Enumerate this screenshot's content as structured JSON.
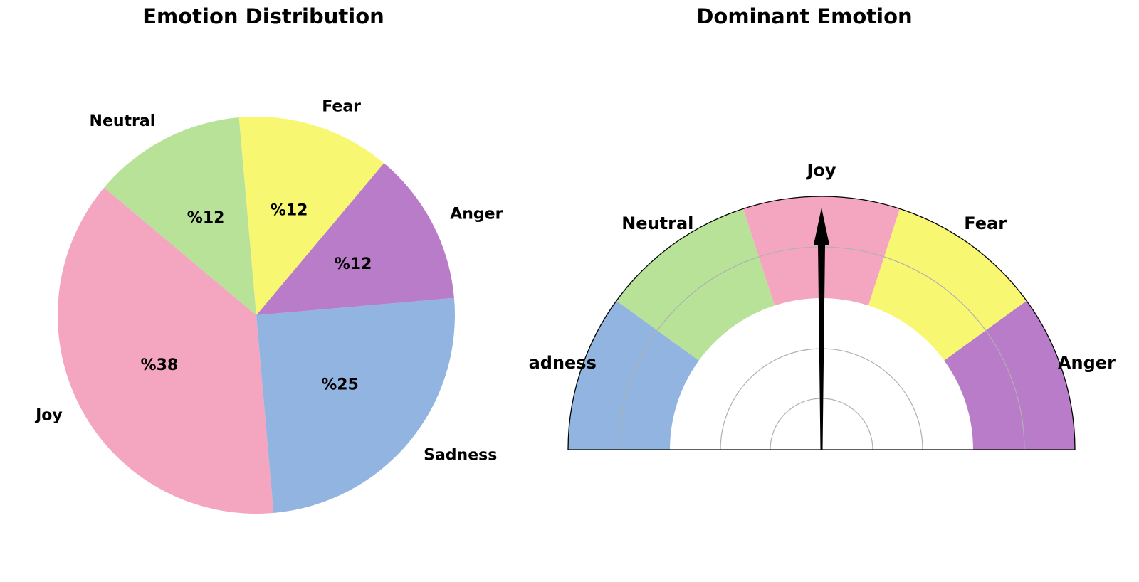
{
  "chart_data": [
    {
      "type": "pie",
      "title": "Emotion Distribution",
      "categories": [
        "Joy",
        "Sadness",
        "Anger",
        "Fear",
        "Neutral"
      ],
      "values": [
        37.5,
        25,
        12.5,
        12.5,
        12.5
      ],
      "value_labels": [
        "%38",
        "%25",
        "%12",
        "%12",
        "%12"
      ],
      "colors": [
        "#f4a6c0",
        "#92b4e0",
        "#b87cc8",
        "#f7f772",
        "#b7e298"
      ],
      "legend": "none"
    },
    {
      "type": "gauge",
      "title": "Dominant Emotion",
      "categories": [
        "Sadness",
        "Neutral",
        "Joy",
        "Fear",
        "Anger"
      ],
      "colors": [
        "#92b4e0",
        "#b7e298",
        "#f4a6c0",
        "#f7f772",
        "#b87cc8"
      ],
      "dominant": "Joy",
      "grid": true
    }
  ]
}
